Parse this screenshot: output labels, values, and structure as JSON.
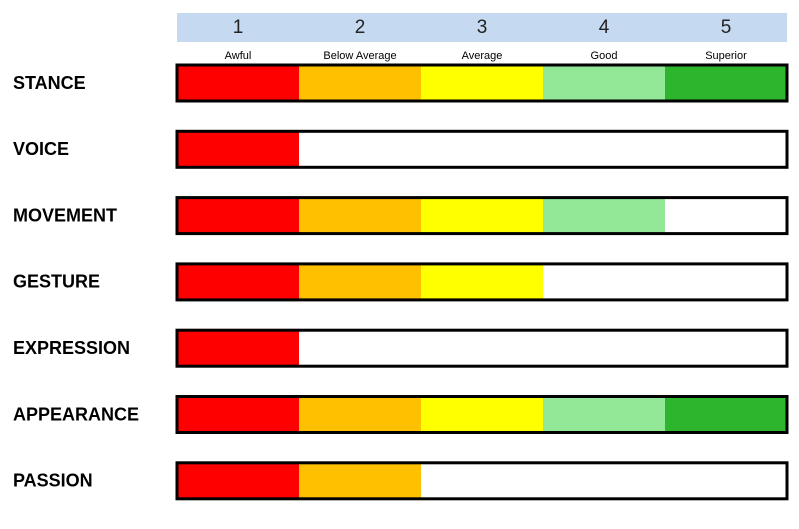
{
  "chart_data": {
    "type": "rating-bar",
    "categories": [
      "STANCE",
      "VOICE",
      "MOVEMENT",
      "GESTURE",
      "EXPRESSION",
      "APPEARANCE",
      "PASSION"
    ],
    "values": [
      5,
      1,
      4,
      3,
      1,
      5,
      2
    ],
    "xlim": [
      0,
      5
    ],
    "xticks": [
      1,
      2,
      3,
      4,
      5
    ],
    "level_labels": [
      "Awful",
      "Below Average",
      "Average",
      "Good",
      "Superior"
    ],
    "level_colors": [
      "#ff0000",
      "#ffc000",
      "#ffff00",
      "#92e896",
      "#2db52d"
    ],
    "header_color": "#c5d9f1"
  }
}
